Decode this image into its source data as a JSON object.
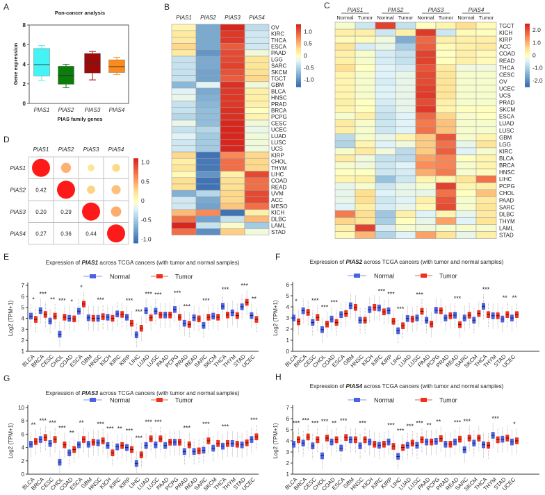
{
  "panel_labels": [
    "A",
    "B",
    "C",
    "D",
    "E",
    "F",
    "G",
    "H"
  ],
  "chart_data": [
    {
      "id": "A",
      "type": "box",
      "title": "Pan-cancer analysis",
      "xlabel": "PIAS family genes",
      "ylabel": "Gene expression",
      "ylim": [
        0,
        8
      ],
      "yticks": [
        0,
        2,
        4,
        6,
        8
      ],
      "categories": [
        "PIAS1",
        "PIAS2",
        "PIAS3",
        "PIAS4"
      ],
      "boxes": [
        {
          "min": 2.35,
          "q1": 2.8,
          "median": 3.95,
          "q3": 5.6,
          "max": 5.9,
          "color": "#44f4f4"
        },
        {
          "min": 1.6,
          "q1": 1.95,
          "median": 2.85,
          "q3": 3.8,
          "max": 4.0,
          "color": "#0a7d0a"
        },
        {
          "min": 2.4,
          "q1": 3.1,
          "median": 4.15,
          "q3": 5.1,
          "max": 5.3,
          "color": "#9c0a0a"
        },
        {
          "min": 2.95,
          "q1": 3.15,
          "median": 3.75,
          "q3": 4.45,
          "max": 4.7,
          "color": "#fb8c1c"
        }
      ]
    },
    {
      "id": "B",
      "type": "heatmap",
      "columns": [
        "PIAS1",
        "PIAS2",
        "PIAS3",
        "PIAS4"
      ],
      "rows": [
        "OV",
        "KIRC",
        "THCA",
        "ESCA",
        "PAAD",
        "LGG",
        "SARC",
        "SKCM",
        "TGCT",
        "GBM",
        "BLCA",
        "HNSC",
        "PRAD",
        "BRCA",
        "PCPG",
        "CESC",
        "UCEC",
        "LUAD",
        "LUSC",
        "UCS",
        "KIRP",
        "CHOL",
        "THYM",
        "LIHC",
        "COAD",
        "READ",
        "UVM",
        "ACC",
        "MESO",
        "KICH",
        "DLBC",
        "LAML",
        "STAD"
      ],
      "values": [
        [
          0.1,
          -0.8,
          1.3,
          -0.4
        ],
        [
          0.2,
          -0.8,
          1.2,
          -0.3
        ],
        [
          0.2,
          -0.8,
          1.2,
          -0.3
        ],
        [
          0.35,
          -0.8,
          1.0,
          -0.3
        ],
        [
          0.2,
          -0.95,
          1.1,
          -0.1
        ],
        [
          -0.35,
          -0.8,
          1.1,
          0.25
        ],
        [
          -0.35,
          -0.8,
          1.15,
          0.25
        ],
        [
          -0.35,
          -0.85,
          1.05,
          0.3
        ],
        [
          -0.35,
          -0.85,
          1.0,
          0.35
        ],
        [
          -0.7,
          -0.2,
          1.25,
          -0.1
        ],
        [
          -0.2,
          -0.8,
          1.2,
          0.15
        ],
        [
          -0.15,
          -0.75,
          1.2,
          0.15
        ],
        [
          -0.35,
          -0.7,
          1.2,
          0.15
        ],
        [
          -0.35,
          -0.65,
          1.25,
          0.0
        ],
        [
          -0.45,
          -0.65,
          1.25,
          0.1
        ],
        [
          -0.15,
          -0.65,
          1.3,
          -0.1
        ],
        [
          -0.35,
          -0.45,
          1.3,
          -0.15
        ],
        [
          -0.2,
          -0.55,
          1.3,
          -0.1
        ],
        [
          -0.3,
          -0.55,
          1.3,
          -0.1
        ],
        [
          -0.3,
          -0.55,
          1.3,
          -0.1
        ],
        [
          0.35,
          -1.2,
          0.75,
          0.35
        ],
        [
          0.15,
          -1.15,
          0.9,
          0.35
        ],
        [
          0.25,
          -1.15,
          0.9,
          0.35
        ],
        [
          0.05,
          -0.95,
          0.15,
          1.1
        ],
        [
          0.3,
          -1.2,
          0.3,
          0.9
        ],
        [
          0.3,
          -1.2,
          0.3,
          0.9
        ],
        [
          -0.75,
          -0.45,
          0.35,
          1.1
        ],
        [
          -0.3,
          -0.8,
          0.35,
          1.1
        ],
        [
          -0.3,
          -0.85,
          0.45,
          0.9
        ],
        [
          0.5,
          0.75,
          -1.2,
          0.15
        ],
        [
          0.9,
          -0.85,
          -0.35,
          0.5
        ],
        [
          1.3,
          -0.35,
          -0.05,
          -0.55
        ],
        [
          0.9,
          -1.0,
          0.4,
          -0.1
        ]
      ],
      "scale": [
        -1.3,
        1.3
      ],
      "colorbar_ticks": [
        "1.0",
        "0.5",
        "0",
        "-0.5",
        "-1.0"
      ],
      "colorbar_tick_values": [
        1.0,
        0.5,
        0,
        -0.5,
        -1.0
      ]
    },
    {
      "id": "C",
      "type": "heatmap",
      "groups": [
        "PIAS1",
        "PIAS2",
        "PIAS3",
        "PIAS4"
      ],
      "columns": [
        "Normal",
        "Tumor",
        "Normal",
        "Tumor",
        "Normal",
        "Tumor",
        "Normal",
        "Tumor"
      ],
      "rows": [
        "TGCT",
        "KICH",
        "KIRP",
        "ACC",
        "COAD",
        "READ",
        "THCA",
        "CESC",
        "OV",
        "UCEC",
        "UCS",
        "PRAD",
        "SKCM",
        "ESCA",
        "LUAD",
        "LUSC",
        "GBM",
        "LGG",
        "KIRC",
        "BLCA",
        "BRCA",
        "HNSC",
        "LIHC",
        "PCPG",
        "CHOL",
        "PAAD",
        "SARC",
        "DLBC",
        "THYM",
        "LAML",
        "STAD"
      ],
      "values": [
        [
          -0.1,
          -0.6,
          2.2,
          -0.7,
          0,
          0.2,
          0.6,
          0.1
        ],
        [
          0.3,
          0.3,
          -0.6,
          0.3,
          2.3,
          -0.6,
          0.1,
          0
        ],
        [
          0.1,
          0.1,
          -0.2,
          -1.5,
          1.8,
          0.3,
          0.3,
          0.3
        ],
        [
          0.5,
          -0.5,
          -0.3,
          -1.0,
          1.9,
          0.1,
          0.3,
          0.4
        ],
        [
          0.3,
          -0.1,
          -0.5,
          -0.7,
          2.2,
          0,
          0.3,
          0.1
        ],
        [
          0.3,
          -0.1,
          -0.5,
          -0.7,
          2.2,
          0,
          0.3,
          0.1
        ],
        [
          0.6,
          0,
          -0.4,
          -0.5,
          2.0,
          0.4,
          -0.2,
          -0.2
        ],
        [
          0.2,
          -0.1,
          -0.4,
          -0.3,
          2.1,
          0.5,
          -0.1,
          -0.1
        ],
        [
          0.2,
          -0.1,
          -0.5,
          -0.3,
          2.1,
          0.5,
          -0.1,
          -0.1
        ],
        [
          0.2,
          -0.1,
          -0.4,
          -0.3,
          2.2,
          0.5,
          -0.1,
          -0.1
        ],
        [
          0.2,
          -0.1,
          -0.4,
          -0.3,
          2.3,
          0.5,
          -0.1,
          -0.1
        ],
        [
          0.3,
          0,
          -0.5,
          -0.3,
          2.1,
          0.3,
          -0.1,
          -0.1
        ],
        [
          0.2,
          0,
          -0.6,
          -0.3,
          2.3,
          0.2,
          0,
          0
        ],
        [
          -0.1,
          0.3,
          -0.7,
          -0.4,
          1.8,
          0.7,
          -0.1,
          0
        ],
        [
          0.4,
          -0.1,
          -0.6,
          -0.4,
          1.6,
          0.9,
          -0.1,
          -0.1
        ],
        [
          0.3,
          -0.1,
          -0.6,
          -0.4,
          1.7,
          0.9,
          -0.1,
          -0.1
        ],
        [
          -0.8,
          -0.1,
          -0.3,
          0.2,
          0.8,
          2.0,
          -0.1,
          0.2
        ],
        [
          -0.9,
          0.2,
          -0.4,
          -0.2,
          0.8,
          1.7,
          -0.3,
          0.5
        ],
        [
          -0.1,
          0.4,
          -0.2,
          -0.8,
          0.8,
          1.9,
          -0.4,
          -0.1
        ],
        [
          0.4,
          -0.2,
          -0.7,
          -0.8,
          1.2,
          1.5,
          0,
          0.2
        ],
        [
          -0.1,
          -0.2,
          -0.6,
          -0.4,
          1.4,
          1.5,
          -0.1,
          0.2
        ],
        [
          0,
          0,
          -0.6,
          -0.5,
          1.1,
          1.6,
          -0.1,
          0.1
        ],
        [
          0.2,
          0.3,
          -1.2,
          -0.6,
          0.2,
          0.2,
          0.5,
          1.7
        ],
        [
          -0.3,
          -0.1,
          -0.6,
          -0.3,
          -0.1,
          2.2,
          0.2,
          0.3
        ],
        [
          -0.3,
          0.6,
          -0.4,
          -0.3,
          -0.3,
          1.7,
          0,
          0.9
        ],
        [
          -0.3,
          0.6,
          -0.6,
          -0.4,
          0.3,
          2.0,
          -0.1,
          0.4
        ],
        [
          -0.4,
          0.3,
          -0.5,
          -0.3,
          0.1,
          2.1,
          -0.1,
          0.5
        ],
        [
          1.6,
          0.6,
          -1.1,
          0.3,
          -0.4,
          0.2,
          -0.3,
          0.4
        ],
        [
          0.7,
          0.5,
          -1.0,
          0,
          -0.3,
          1.2,
          -0.4,
          0.5
        ],
        [
          0.3,
          2.2,
          -0.5,
          -0.1,
          -0.2,
          -0.1,
          -0.1,
          -0.1
        ],
        [
          0.1,
          1.0,
          -0.9,
          -0.4,
          1.2,
          0.5,
          -0.3,
          0.3
        ]
      ],
      "scale": [
        -2.5,
        2.5
      ],
      "colorbar_ticks": [
        "2.0",
        "1.0",
        "0",
        "-1.0",
        "-2.0"
      ],
      "colorbar_tick_values": [
        2.0,
        1.0,
        0,
        -1.0,
        -2.0
      ]
    },
    {
      "id": "D",
      "type": "correlation",
      "labels": [
        "PIAS1",
        "PIAS2",
        "PIAS3",
        "PIAS4"
      ],
      "matrix": [
        [
          1,
          0.42,
          0.2,
          0.27
        ],
        [
          0.42,
          1,
          0.29,
          0.36
        ],
        [
          0.2,
          0.29,
          1,
          0.44
        ],
        [
          0.27,
          0.36,
          0.44,
          1
        ]
      ],
      "lower_text": [
        "",
        "",
        "",
        "",
        "0.42",
        "",
        "",
        "",
        "0.20",
        "0.29",
        "",
        "",
        "0.27",
        "0.36",
        "0.44",
        ""
      ],
      "colorbar_ticks": [
        "1.0",
        "0.5",
        "0",
        "-0.5",
        "-1.0"
      ],
      "colorbar_tick_values": [
        1.0,
        0.5,
        0,
        -0.5,
        -1.0
      ]
    },
    {
      "id": "E",
      "type": "box",
      "title_prefix": "Expression of ",
      "gene": "PIAS1",
      "title_suffix": " across TCGA cancers (with tumor and normal samples)",
      "ylabel": "Log2 (TPM+1)",
      "ylim": [
        1,
        7
      ],
      "yticks": [
        "1",
        "2",
        "3",
        "4",
        "5",
        "6",
        "7"
      ],
      "legend": [
        "Normal",
        "Tumor"
      ],
      "colors": {
        "normal": "#4a62e6",
        "tumor": "#f0301c"
      },
      "categories": [
        "BLCA",
        "BRCA",
        "CESC",
        "CHOL",
        "COAD",
        "ESCA",
        "GBM",
        "HNSC",
        "KICH",
        "KIRC",
        "KIRP",
        "LIHC",
        "LUAD",
        "LUSC",
        "PAAD",
        "PCPG",
        "PRAD",
        "READ",
        "SARC",
        "SKCM",
        "THCA",
        "THYM",
        "STAD",
        "UCEC"
      ],
      "normal_median": [
        4.2,
        4.7,
        3.75,
        2.55,
        4.0,
        4.65,
        4.05,
        4.0,
        4.1,
        4.4,
        4.1,
        2.5,
        4.7,
        4.65,
        4.3,
        4.8,
        3.55,
        4.05,
        3.35,
        4.2,
        5.1,
        4.5,
        5.05,
        4.25
      ],
      "tumor_median": [
        3.9,
        4.35,
        4.2,
        4.1,
        3.95,
        5.3,
        4.0,
        4.15,
        4.0,
        4.35,
        3.55,
        3.1,
        4.05,
        4.3,
        4.3,
        4.1,
        3.45,
        3.95,
        4.1,
        4.1,
        4.3,
        4.25,
        5.45,
        3.9
      ],
      "significance": [
        "*",
        "***",
        "**",
        "***",
        "*",
        "*",
        "",
        "***",
        "",
        "",
        "***",
        "***",
        "***",
        "***",
        "",
        "***",
        "***",
        "",
        "***",
        "",
        "***",
        "",
        "***",
        "**"
      ]
    },
    {
      "id": "F",
      "type": "box",
      "title_prefix": "Expression of ",
      "gene": "PIAS2",
      "title_suffix": " across TCGA cancers (with tumor and normal samples)",
      "ylabel": "Log2 (TPM+1)",
      "ylim": [
        0,
        6
      ],
      "yticks": [
        "0",
        "1",
        "2",
        "3",
        "4",
        "5",
        "6"
      ],
      "legend": [
        "Normal",
        "Tumor"
      ],
      "colors": {
        "normal": "#4a62e6",
        "tumor": "#f0301c"
      },
      "categories": [
        "BLCA",
        "BRCA",
        "CESC",
        "CHOL",
        "COAD",
        "ESCA",
        "GBM",
        "HNSC",
        "KICH",
        "KIRC",
        "KIRP",
        "LIHC",
        "LUAD",
        "LUSC",
        "PAAD",
        "PCPG",
        "PRAD",
        "READ",
        "SARC",
        "SKCM",
        "THCA",
        "THYM",
        "STAD",
        "UCEC"
      ],
      "normal_median": [
        3.0,
        3.65,
        2.6,
        1.95,
        2.9,
        3.3,
        4.1,
        2.8,
        3.75,
        3.9,
        3.65,
        1.85,
        2.95,
        3.0,
        2.8,
        3.7,
        3.0,
        3.25,
        3.0,
        2.8,
        4.05,
        3.2,
        2.9,
        3.0
      ],
      "tumor_median": [
        2.65,
        3.5,
        3.05,
        2.45,
        2.6,
        3.4,
        3.95,
        2.8,
        3.95,
        3.55,
        2.7,
        2.3,
        2.9,
        3.6,
        2.45,
        3.65,
        3.2,
        2.4,
        3.25,
        3.4,
        3.3,
        3.2,
        3.3,
        3.3
      ],
      "significance": [
        "*",
        "",
        "***",
        "***",
        "***",
        "",
        "",
        "",
        "",
        "***",
        "***",
        "***",
        "",
        "***",
        "",
        "",
        "",
        "***",
        "",
        "",
        "***",
        "",
        "**",
        "**"
      ]
    },
    {
      "id": "G",
      "type": "box",
      "title_prefix": "Expression of ",
      "gene": "PIAS3",
      "title_suffix": " across TCGA cancers (with tumor and normal samples)",
      "ylabel": "Log2 (TPM+1)",
      "ylim": [
        0,
        10
      ],
      "yticks": [
        "0",
        "2",
        "4",
        "6",
        "8",
        "10"
      ],
      "legend": [
        "Normal",
        "Tumor"
      ],
      "colors": {
        "normal": "#4a62e6",
        "tumor": "#f0301c"
      },
      "categories": [
        "BLCA",
        "BRCA",
        "CESC",
        "CHOL",
        "COAD",
        "ESCA",
        "GBM",
        "HNSC",
        "KICH",
        "KIRC",
        "KIRP",
        "LIHC",
        "LUAD",
        "LUSC",
        "PAAD",
        "PCPG",
        "PRAD",
        "READ",
        "SARC",
        "SKCM",
        "THCA",
        "THYM",
        "STAD",
        "UCEC"
      ],
      "normal_median": [
        4.5,
        5.2,
        4.6,
        1.8,
        3.2,
        4.4,
        4.5,
        4.7,
        4.3,
        4.1,
        4.0,
        1.6,
        4.3,
        4.4,
        4.3,
        4.8,
        3.4,
        3.4,
        3.6,
        3.9,
        4.2,
        4.6,
        4.4,
        5.2
      ],
      "tumor_median": [
        4.9,
        5.5,
        5.2,
        4.4,
        3.7,
        5.2,
        4.8,
        5.0,
        3.2,
        4.3,
        3.7,
        2.9,
        5.3,
        5.3,
        4.8,
        4.8,
        4.4,
        3.5,
        5.0,
        4.6,
        4.6,
        4.5,
        4.7,
        5.6
      ],
      "significance": [
        "**",
        "***",
        "***",
        "***",
        "**",
        "**",
        "",
        "***",
        "***",
        "**",
        "***",
        "***",
        "***",
        "***",
        "",
        "",
        "***",
        "",
        "***",
        "",
        "***",
        "",
        "",
        "***"
      ]
    },
    {
      "id": "H",
      "type": "box",
      "title_prefix": "Expression of ",
      "gene": "PIAS4",
      "title_suffix": " across TCGA cancers (with tumor and normal samples)",
      "ylabel": "Log2 (TPM+1)",
      "ylim": [
        1,
        7
      ],
      "yticks": [
        "1",
        "2",
        "3",
        "4",
        "5",
        "6",
        "7"
      ],
      "legend": [
        "Normal",
        "Tumor"
      ],
      "colors": {
        "normal": "#4a62e6",
        "tumor": "#f0301c"
      },
      "categories": [
        "BLCA",
        "BRCA",
        "CESC",
        "CHOL",
        "COAD",
        "ESCA",
        "GBM",
        "HNSC",
        "KICH",
        "KIRC",
        "KIRP",
        "LIHC",
        "LUAD",
        "LUSC",
        "PAAD",
        "PCPG",
        "PRAD",
        "READ",
        "SARC",
        "SKCM",
        "THCA",
        "THYM",
        "STAD",
        "UCEC"
      ],
      "normal_median": [
        3.7,
        3.8,
        3.55,
        2.65,
        3.9,
        3.35,
        4.1,
        3.55,
        3.9,
        3.6,
        3.9,
        2.6,
        3.6,
        3.6,
        3.9,
        3.95,
        3.7,
        3.9,
        3.2,
        3.8,
        3.65,
        4.5,
        4.15,
        3.9
      ],
      "tumor_median": [
        4.1,
        4.35,
        4.1,
        4.25,
        4.1,
        4.3,
        4.1,
        4.1,
        3.7,
        3.7,
        3.5,
        3.4,
        3.8,
        4.1,
        3.9,
        4.2,
        3.7,
        4.15,
        4.25,
        4.25,
        3.6,
        4.1,
        4.25,
        4.0
      ],
      "significance": [
        "***",
        "***",
        "***",
        "***",
        "**",
        "***",
        "",
        "***",
        "",
        "",
        "***",
        "***",
        "***",
        "***",
        "**",
        "**",
        "",
        "***",
        "***",
        "",
        "",
        "***",
        "",
        "*"
      ]
    }
  ]
}
